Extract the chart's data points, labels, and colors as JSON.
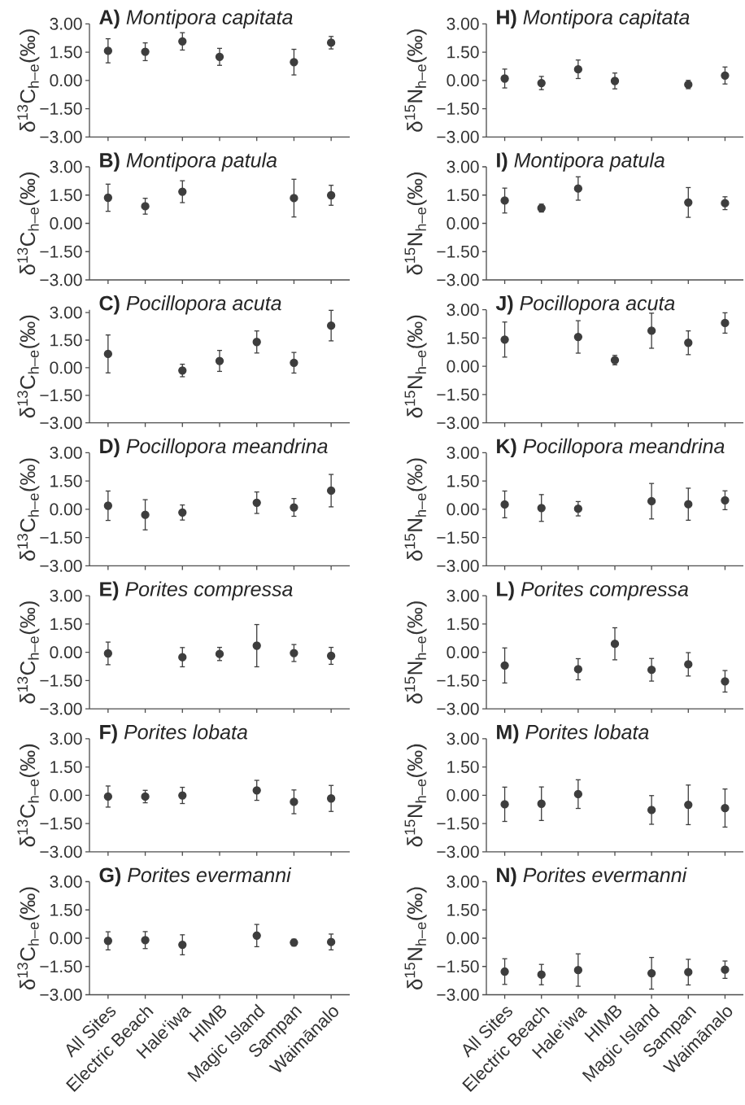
{
  "chart_data": [
    {
      "type": "scatter",
      "title": "**A)** *Montipora capitata*",
      "ylabel": "δ$^{13}$C$_{h–e}$(‰)",
      "categories": [
        null,
        null,
        null,
        null,
        null,
        null,
        null
      ],
      "values": [
        1.57,
        1.52,
        2.07,
        1.25,
        null,
        0.97,
        2.0
      ],
      "errors": [
        0.64,
        0.47,
        0.46,
        0.45,
        null,
        0.68,
        0.33
      ],
      "color": "#3d3d3d",
      "marker": "circle",
      "ylim": [
        -3,
        3
      ],
      "yticks": [
        {
          "value": -3,
          "label": "−3.00"
        },
        {
          "value": -1.5,
          "label": "−1.50"
        },
        {
          "value": 0,
          "label": "0.00"
        },
        {
          "value": 1.5,
          "label": "1.50"
        },
        {
          "value": 3,
          "label": "3.00"
        }
      ],
      "tick_labels": "y"
    },
    {
      "type": "scatter",
      "title": "**B)** *Montipora patula*",
      "ylabel": "δ$^{13}$C$_{h–e}$(‰)",
      "categories": [
        null,
        null,
        null,
        null,
        null,
        null,
        null
      ],
      "values": [
        1.36,
        0.91,
        1.68,
        null,
        null,
        1.34,
        1.49
      ],
      "errors": [
        0.72,
        0.42,
        0.58,
        null,
        null,
        1.0,
        0.53
      ],
      "color": "#3d3d3d",
      "marker": "circle",
      "ylim": [
        -3,
        3
      ],
      "yticks": [
        {
          "value": -3,
          "label": "−3.00"
        },
        {
          "value": -1.5,
          "label": "−1.50"
        },
        {
          "value": 0,
          "label": "0.00"
        },
        {
          "value": 1.5,
          "label": "1.50"
        },
        {
          "value": 3,
          "label": "3.00"
        }
      ],
      "tick_labels": "y"
    },
    {
      "type": "scatter",
      "title": "**C)** *Pocillopora acuta*",
      "ylabel": "δ$^{13}$C$_{h–e}$(‰)",
      "categories": [
        null,
        null,
        null,
        null,
        null,
        null,
        null
      ],
      "values": [
        0.75,
        null,
        -0.15,
        0.37,
        1.4,
        0.27,
        2.29
      ],
      "errors": [
        1.03,
        null,
        0.34,
        0.57,
        0.6,
        0.56,
        0.83
      ],
      "color": "#3d3d3d",
      "marker": "circle",
      "ylim": [
        -3,
        3.15
      ],
      "yticks": [
        {
          "value": -3,
          "label": "−3.00"
        },
        {
          "value": -1.5,
          "label": "−1.50"
        },
        {
          "value": 0,
          "label": "0.00"
        },
        {
          "value": 1.5,
          "label": "1.50"
        },
        {
          "value": 3,
          "label": "3.00"
        }
      ],
      "tick_labels": "y"
    },
    {
      "type": "scatter",
      "title": "**D)** *Pocillopora meandrina*",
      "ylabel": "δ$^{13}$C$_{h–e}$(‰)",
      "categories": [
        null,
        null,
        null,
        null,
        null,
        null,
        null
      ],
      "values": [
        0.19,
        -0.29,
        -0.17,
        null,
        0.35,
        0.1,
        0.99
      ],
      "errors": [
        0.78,
        0.8,
        0.4,
        null,
        0.57,
        0.47,
        0.86
      ],
      "color": "#3d3d3d",
      "marker": "circle",
      "ylim": [
        -3,
        3
      ],
      "yticks": [
        {
          "value": -3,
          "label": "−3.00"
        },
        {
          "value": -1.5,
          "label": "−1.50"
        },
        {
          "value": 0,
          "label": "0.00"
        },
        {
          "value": 1.5,
          "label": "1.50"
        },
        {
          "value": 3,
          "label": "3.00"
        }
      ],
      "tick_labels": "y"
    },
    {
      "type": "scatter",
      "title": "**E)** *Porites compressa*",
      "ylabel": "δ$^{13}$C$_{h–e}$(‰)",
      "categories": [
        null,
        null,
        null,
        null,
        null,
        null,
        null
      ],
      "values": [
        -0.06,
        null,
        -0.26,
        -0.09,
        0.35,
        -0.04,
        -0.19
      ],
      "errors": [
        0.6,
        null,
        0.51,
        0.35,
        1.12,
        0.45,
        0.45
      ],
      "color": "#3d3d3d",
      "marker": "circle",
      "ylim": [
        -3,
        3
      ],
      "yticks": [
        {
          "value": -3,
          "label": "−3.00"
        },
        {
          "value": -1.5,
          "label": "−1.50"
        },
        {
          "value": 0,
          "label": "0.00"
        },
        {
          "value": 1.5,
          "label": "1.50"
        },
        {
          "value": 3,
          "label": "3.00"
        }
      ],
      "tick_labels": "y"
    },
    {
      "type": "scatter",
      "title": "**F)** *Porites lobata*",
      "ylabel": "δ$^{13}$C$_{h–e}$(‰)",
      "categories": [
        null,
        null,
        null,
        null,
        null,
        null,
        null
      ],
      "values": [
        -0.07,
        -0.07,
        -0.01,
        null,
        0.26,
        -0.35,
        -0.17
      ],
      "errors": [
        0.56,
        0.33,
        0.43,
        null,
        0.53,
        0.63,
        0.69
      ],
      "color": "#3d3d3d",
      "marker": "circle",
      "ylim": [
        -3,
        3
      ],
      "yticks": [
        {
          "value": -3,
          "label": "−3.00"
        },
        {
          "value": -1.5,
          "label": "−1.50"
        },
        {
          "value": 0,
          "label": "0.00"
        },
        {
          "value": 1.5,
          "label": "1.50"
        },
        {
          "value": 3,
          "label": "3.00"
        }
      ],
      "tick_labels": "y"
    },
    {
      "type": "scatter",
      "title": "**G)** *Porites evermanni*",
      "ylabel": "δ$^{13}$C$_{h–e}$(‰)",
      "categories": [
        "All Sites",
        "Electric Beach",
        "Hale‘iwa",
        "HIMB",
        "Magic Island",
        "Sampan",
        "Waimānalo"
      ],
      "values": [
        -0.14,
        -0.1,
        -0.35,
        null,
        0.14,
        -0.23,
        -0.2
      ],
      "errors": [
        0.48,
        0.45,
        0.53,
        null,
        0.59,
        0.18,
        0.42
      ],
      "color": "#3d3d3d",
      "marker": "circle",
      "ylim": [
        -3,
        3
      ],
      "yticks": [
        {
          "value": -3,
          "label": "−3.00"
        },
        {
          "value": -1.5,
          "label": "−1.50"
        },
        {
          "value": 0,
          "label": "0.00"
        },
        {
          "value": 1.5,
          "label": "1.50"
        },
        {
          "value": 3,
          "label": "3.00"
        }
      ]
    },
    {
      "type": "scatter",
      "title": "**H)** *Montipora capitata*",
      "ylabel": "δ$^{15}$N$_{h–e}$(‰)",
      "categories": [
        null,
        null,
        null,
        null,
        null,
        null,
        null
      ],
      "values": [
        0.1,
        -0.14,
        0.59,
        -0.03,
        null,
        -0.22,
        0.26
      ],
      "errors": [
        0.5,
        0.35,
        0.49,
        0.42,
        null,
        0.22,
        0.45
      ],
      "color": "#3d3d3d",
      "marker": "circle",
      "ylim": [
        -3,
        3
      ],
      "yticks": [
        {
          "value": -3,
          "label": "−3.00"
        },
        {
          "value": -1.5,
          "label": "−1.50"
        },
        {
          "value": 0,
          "label": "0.00"
        },
        {
          "value": 1.5,
          "label": "1.50"
        },
        {
          "value": 3,
          "label": "3.00"
        }
      ],
      "tick_labels": "y"
    },
    {
      "type": "scatter",
      "title": "**I)** *Montipora patula*",
      "ylabel": "δ$^{15}$N$_{h–e}$(‰)",
      "categories": [
        null,
        null,
        null,
        null,
        null,
        null,
        null
      ],
      "values": [
        1.21,
        0.81,
        1.85,
        null,
        null,
        1.11,
        1.07
      ],
      "errors": [
        0.66,
        0.21,
        0.62,
        null,
        null,
        0.79,
        0.34
      ],
      "color": "#3d3d3d",
      "marker": "circle",
      "ylim": [
        -3,
        3
      ],
      "yticks": [
        {
          "value": -3,
          "label": "−3.00"
        },
        {
          "value": -1.5,
          "label": "−1.50"
        },
        {
          "value": 0,
          "label": "0.00"
        },
        {
          "value": 1.5,
          "label": "1.50"
        },
        {
          "value": 3,
          "label": "3.00"
        }
      ],
      "tick_labels": "y"
    },
    {
      "type": "scatter",
      "title": "**J)** *Pocillopora acuta*",
      "ylabel": "δ$^{15}$N$_{h–e}$(‰)",
      "categories": [
        null,
        null,
        null,
        null,
        null,
        null,
        null
      ],
      "values": [
        1.42,
        null,
        1.56,
        0.33,
        1.89,
        1.25,
        2.3
      ],
      "errors": [
        0.93,
        null,
        0.86,
        0.25,
        0.93,
        0.63,
        0.54
      ],
      "color": "#3d3d3d",
      "marker": "circle",
      "ylim": [
        -3,
        3
      ],
      "yticks": [
        {
          "value": -3,
          "label": "−3.00"
        },
        {
          "value": -1.5,
          "label": "−1.50"
        },
        {
          "value": 0,
          "label": "0.00"
        },
        {
          "value": 1.5,
          "label": "1.50"
        },
        {
          "value": 3,
          "label": "3.00"
        }
      ],
      "tick_labels": "y"
    },
    {
      "type": "scatter",
      "title": "**K)** *Pocillopora meandrina*",
      "ylabel": "δ$^{15}$N$_{h–e}$(‰)",
      "categories": [
        null,
        null,
        null,
        null,
        null,
        null,
        null
      ],
      "values": [
        0.26,
        0.07,
        0.03,
        null,
        0.43,
        0.27,
        0.48
      ],
      "errors": [
        0.71,
        0.71,
        0.38,
        null,
        0.94,
        0.85,
        0.5
      ],
      "color": "#3d3d3d",
      "marker": "circle",
      "ylim": [
        -3,
        3
      ],
      "yticks": [
        {
          "value": -3,
          "label": "−3.00"
        },
        {
          "value": -1.5,
          "label": "−1.50"
        },
        {
          "value": 0,
          "label": "0.00"
        },
        {
          "value": 1.5,
          "label": "1.50"
        },
        {
          "value": 3,
          "label": "3.00"
        }
      ],
      "tick_labels": "y"
    },
    {
      "type": "scatter",
      "title": "**L)** *Porites compressa*",
      "ylabel": "δ$^{15}$N$_{h–e}$(‰)",
      "categories": [
        null,
        null,
        null,
        null,
        null,
        null,
        null
      ],
      "values": [
        -0.7,
        null,
        -0.9,
        0.45,
        -0.93,
        -0.64,
        -1.54
      ],
      "errors": [
        0.93,
        null,
        0.56,
        0.85,
        0.6,
        0.62,
        0.57
      ],
      "color": "#3d3d3d",
      "marker": "circle",
      "ylim": [
        -3,
        3
      ],
      "yticks": [
        {
          "value": -3,
          "label": "−3.00"
        },
        {
          "value": -1.5,
          "label": "−1.50"
        },
        {
          "value": 0,
          "label": "0.00"
        },
        {
          "value": 1.5,
          "label": "1.50"
        },
        {
          "value": 3,
          "label": "3.00"
        }
      ],
      "tick_labels": "y"
    },
    {
      "type": "scatter",
      "title": "**M)** *Porites lobata*",
      "ylabel": "δ$^{15}$N$_{h–e}$(‰)",
      "categories": [
        null,
        null,
        null,
        null,
        null,
        null,
        null
      ],
      "values": [
        -0.48,
        -0.45,
        0.06,
        null,
        -0.78,
        -0.51,
        -0.68
      ],
      "errors": [
        0.91,
        0.89,
        0.76,
        null,
        0.76,
        1.05,
        1.01
      ],
      "color": "#3d3d3d",
      "marker": "circle",
      "ylim": [
        -3,
        3
      ],
      "yticks": [
        {
          "value": -3,
          "label": "−3.00"
        },
        {
          "value": -1.5,
          "label": "−1.50"
        },
        {
          "value": 0,
          "label": "0.00"
        },
        {
          "value": 1.5,
          "label": "1.50"
        },
        {
          "value": 3,
          "label": "3.00"
        }
      ],
      "tick_labels": "y"
    },
    {
      "type": "scatter",
      "title": "**N)** *Porites evermanni*",
      "ylabel": "δ$^{15}$N$_{h–e}$(‰)",
      "categories": [
        "All Sites",
        "Electric Beach",
        "Hale‘iwa",
        "HIMB",
        "Magic Island",
        "Sampan",
        "Waimānalo"
      ],
      "values": [
        -1.77,
        -1.93,
        -1.69,
        null,
        -1.86,
        -1.8,
        -1.67
      ],
      "errors": [
        0.68,
        0.54,
        0.86,
        null,
        0.84,
        0.68,
        0.46
      ],
      "color": "#3d3d3d",
      "marker": "circle",
      "ylim": [
        -3,
        3
      ],
      "yticks": [
        {
          "value": -3,
          "label": "−3.00"
        },
        {
          "value": -1.5,
          "label": "−1.50"
        },
        {
          "value": 0,
          "label": "0.00"
        },
        {
          "value": 1.5,
          "label": "1.50"
        },
        {
          "value": 3,
          "label": "3.00"
        }
      ]
    }
  ]
}
